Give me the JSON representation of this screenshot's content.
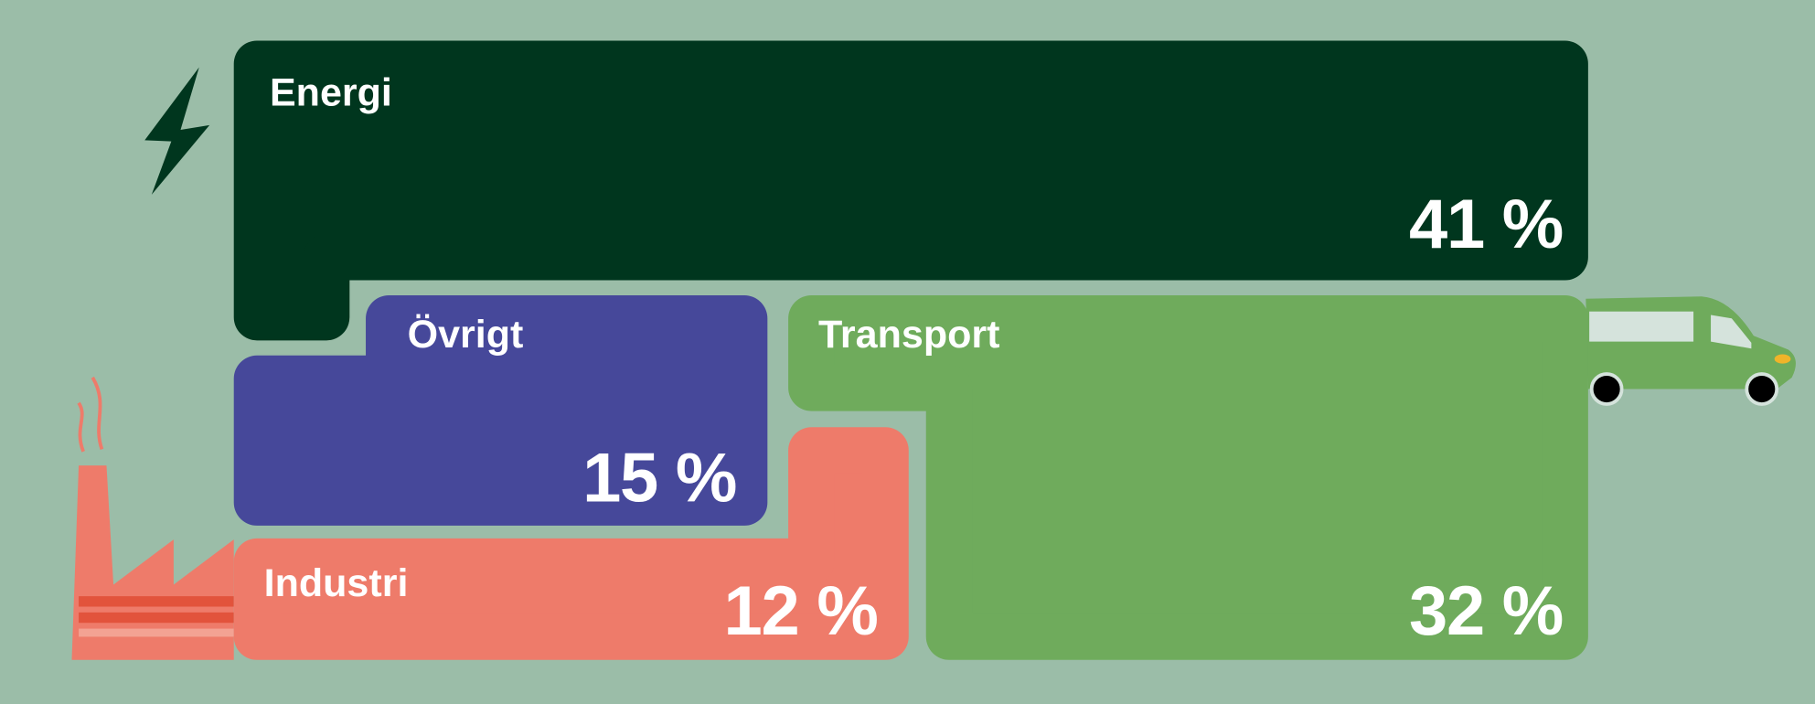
{
  "chart_data": {
    "type": "treemap",
    "categories": [
      "Energi",
      "Övrigt",
      "Transport",
      "Industri"
    ],
    "values": [
      41,
      15,
      32,
      12
    ],
    "value_labels": [
      "41 %",
      "15 %",
      "32 %",
      "12 %"
    ],
    "colors": [
      "#00361e",
      "#46489a",
      "#6fab5c",
      "#ee7b6a"
    ]
  }
}
